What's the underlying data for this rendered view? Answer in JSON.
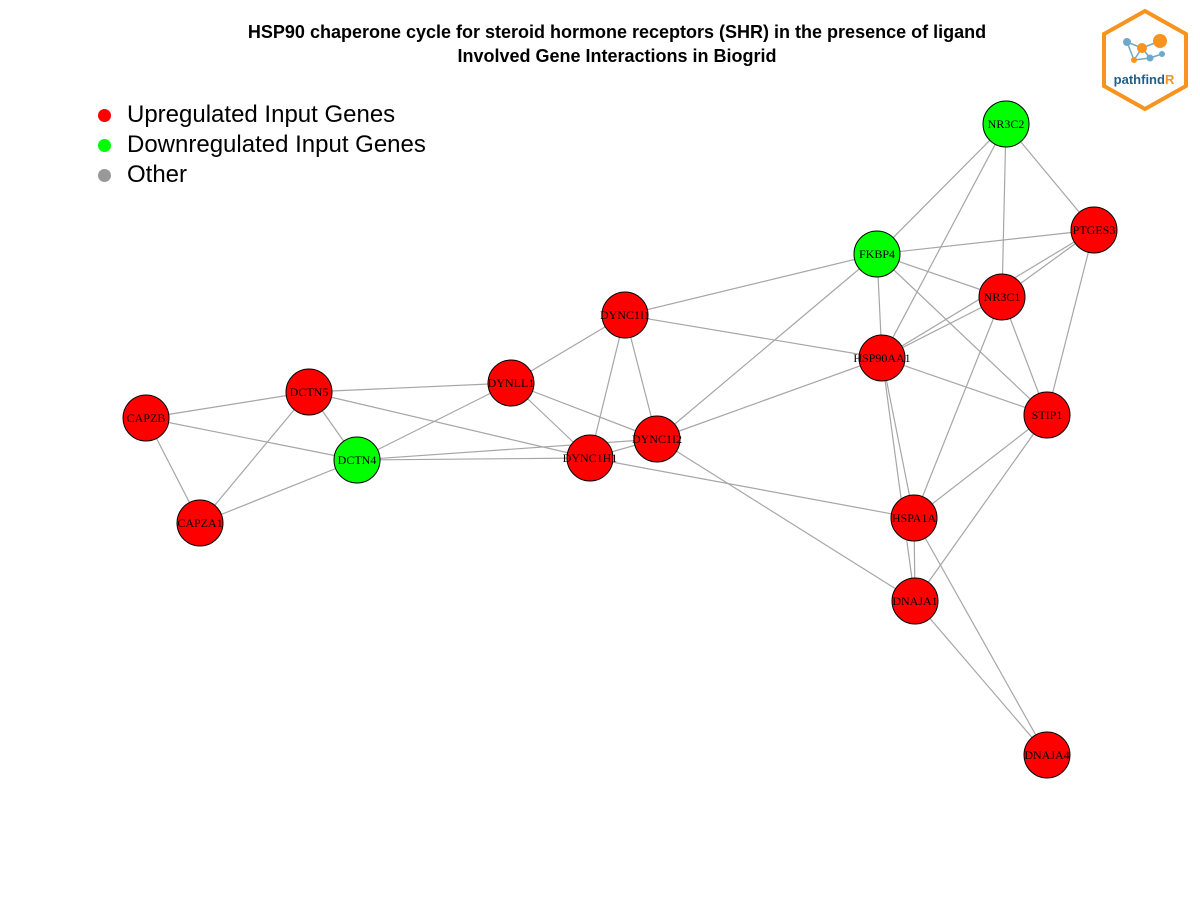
{
  "title": {
    "line1": "HSP90 chaperone cycle for steroid hormone receptors (SHR) in the presence of ligand",
    "line2": "Involved Gene Interactions in Biogrid"
  },
  "legend": [
    {
      "label": "Upregulated Input Genes",
      "color": "#ff0000"
    },
    {
      "label": "Downregulated Input Genes",
      "color": "#00ff00"
    },
    {
      "label": "Other",
      "color": "#999999"
    }
  ],
  "logo": {
    "text_main": "pathfind",
    "text_accent": "R",
    "border_color": "#f7931e",
    "text_color": "#1f5f8b"
  },
  "colors": {
    "up": "#ff0000",
    "down": "#00ff00",
    "edge": "#a6a6a6",
    "border": "#000000"
  },
  "nodes": [
    {
      "id": "NR3C2",
      "status": "down"
    },
    {
      "id": "PTGES3",
      "status": "up"
    },
    {
      "id": "FKBP4",
      "status": "down"
    },
    {
      "id": "NR3C1",
      "status": "up"
    },
    {
      "id": "DYNC1I1",
      "status": "up"
    },
    {
      "id": "HSP90AA1",
      "status": "up"
    },
    {
      "id": "DYNLL1",
      "status": "up"
    },
    {
      "id": "DCTN5",
      "status": "up"
    },
    {
      "id": "STIP1",
      "status": "up"
    },
    {
      "id": "CAPZB",
      "status": "up"
    },
    {
      "id": "DYNC1I2",
      "status": "up"
    },
    {
      "id": "DCTN4",
      "status": "down"
    },
    {
      "id": "DYNC1H1",
      "status": "up"
    },
    {
      "id": "HSPA1A",
      "status": "up"
    },
    {
      "id": "CAPZA1",
      "status": "up"
    },
    {
      "id": "DNAJA1",
      "status": "up"
    },
    {
      "id": "DNAJA4",
      "status": "up"
    }
  ],
  "edges": [
    [
      "NR3C2",
      "PTGES3"
    ],
    [
      "NR3C2",
      "FKBP4"
    ],
    [
      "NR3C2",
      "NR3C1"
    ],
    [
      "NR3C2",
      "HSP90AA1"
    ],
    [
      "PTGES3",
      "FKBP4"
    ],
    [
      "PTGES3",
      "NR3C1"
    ],
    [
      "PTGES3",
      "HSP90AA1"
    ],
    [
      "PTGES3",
      "STIP1"
    ],
    [
      "FKBP4",
      "NR3C1"
    ],
    [
      "FKBP4",
      "HSP90AA1"
    ],
    [
      "FKBP4",
      "DYNC1I1"
    ],
    [
      "FKBP4",
      "DYNC1I2"
    ],
    [
      "FKBP4",
      "STIP1"
    ],
    [
      "NR3C1",
      "HSP90AA1"
    ],
    [
      "NR3C1",
      "STIP1"
    ],
    [
      "NR3C1",
      "HSPA1A"
    ],
    [
      "DYNC1I1",
      "HSP90AA1"
    ],
    [
      "DYNC1I1",
      "DYNLL1"
    ],
    [
      "DYNC1I1",
      "DYNC1I2"
    ],
    [
      "DYNC1I1",
      "DYNC1H1"
    ],
    [
      "HSP90AA1",
      "STIP1"
    ],
    [
      "HSP90AA1",
      "HSPA1A"
    ],
    [
      "HSP90AA1",
      "DNAJA1"
    ],
    [
      "HSP90AA1",
      "DYNC1I2"
    ],
    [
      "DYNLL1",
      "DCTN5"
    ],
    [
      "DYNLL1",
      "DCTN4"
    ],
    [
      "DYNLL1",
      "DYNC1H1"
    ],
    [
      "DYNLL1",
      "DYNC1I2"
    ],
    [
      "DCTN5",
      "CAPZB"
    ],
    [
      "DCTN5",
      "DCTN4"
    ],
    [
      "DCTN5",
      "CAPZA1"
    ],
    [
      "DCTN5",
      "DYNC1H1"
    ],
    [
      "CAPZB",
      "DCTN4"
    ],
    [
      "CAPZB",
      "CAPZA1"
    ],
    [
      "DCTN4",
      "CAPZA1"
    ],
    [
      "DCTN4",
      "DYNC1H1"
    ],
    [
      "DCTN4",
      "DYNC1I2"
    ],
    [
      "DYNC1H1",
      "DYNC1I2"
    ],
    [
      "DYNC1H1",
      "HSPA1A"
    ],
    [
      "DYNC1I2",
      "DNAJA1"
    ],
    [
      "STIP1",
      "HSPA1A"
    ],
    [
      "STIP1",
      "DNAJA1"
    ],
    [
      "HSPA1A",
      "DNAJA1"
    ],
    [
      "HSPA1A",
      "DNAJA4"
    ],
    [
      "DNAJA1",
      "DNAJA4"
    ]
  ]
}
